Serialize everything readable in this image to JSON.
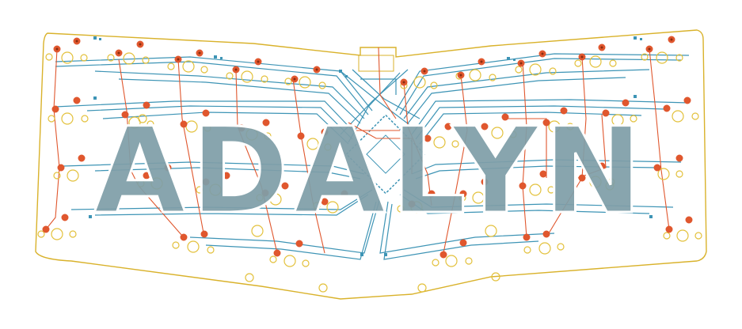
{
  "board": {
    "title": "ADALYN"
  },
  "colors": {
    "background": "#ffffff",
    "outline": "#d9b22b",
    "trace_blue": "#3d94b5",
    "trace_red": "#e0572e",
    "pad_orange": "#e0572e",
    "pad_center": "#8a2d10",
    "hole_yellow": "#e3c13c",
    "title_fill": "#7f9ea8",
    "title_inner": "#ffffff"
  }
}
